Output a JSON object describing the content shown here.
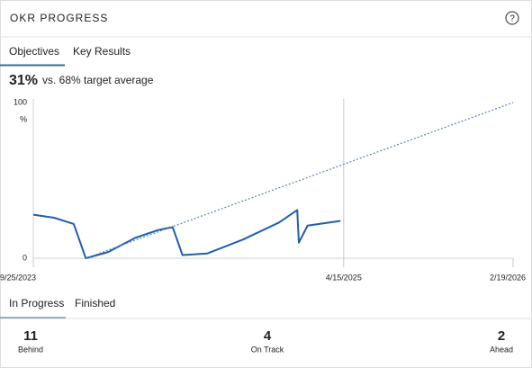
{
  "header": {
    "title": "OKR PROGRESS",
    "help": "?"
  },
  "tabs": [
    "Objectives",
    "Key Results"
  ],
  "summary": {
    "value": "31%",
    "text": "vs. 68% target average"
  },
  "chart_data": {
    "type": "line",
    "y_label": "%",
    "xlim": [
      "9/25/2023",
      "2/19/2026"
    ],
    "xticks": [
      "9/25/2023",
      "4/15/2025",
      "2/19/2026"
    ],
    "ylim": [
      0,
      100
    ],
    "yticks": [
      0,
      100
    ],
    "series": [
      {
        "color": "#1f5fae",
        "style": "solid",
        "x": [
          "9/25/2023",
          "11/2/2023",
          "12/8/2023",
          "12/30/2023",
          "2/9/2024",
          "3/29/2024",
          "5/9/2024",
          "6/6/2024",
          "6/24/2024",
          "8/8/2024",
          "10/13/2024",
          "12/18/2024",
          "1/20/2025",
          "1/23/2025",
          "2/8/2025",
          "4/9/2025"
        ],
        "values": [
          28,
          26,
          22,
          0,
          4,
          13,
          18,
          20,
          2,
          3,
          12,
          23,
          31,
          10,
          21,
          24
        ]
      },
      {
        "color": "#5a86b8",
        "style": "dotted",
        "x": [
          "12/30/2023",
          "2/19/2026"
        ],
        "values": [
          0,
          100
        ]
      }
    ]
  },
  "status_tabs": [
    "In Progress",
    "Finished"
  ],
  "stats": [
    {
      "value": "11",
      "label": "Behind",
      "color": "#b3261e"
    },
    {
      "value": "4",
      "label": "On Track",
      "color": "#1e7a34"
    },
    {
      "value": "2",
      "label": "Ahead",
      "color": "#1e7a34"
    }
  ]
}
